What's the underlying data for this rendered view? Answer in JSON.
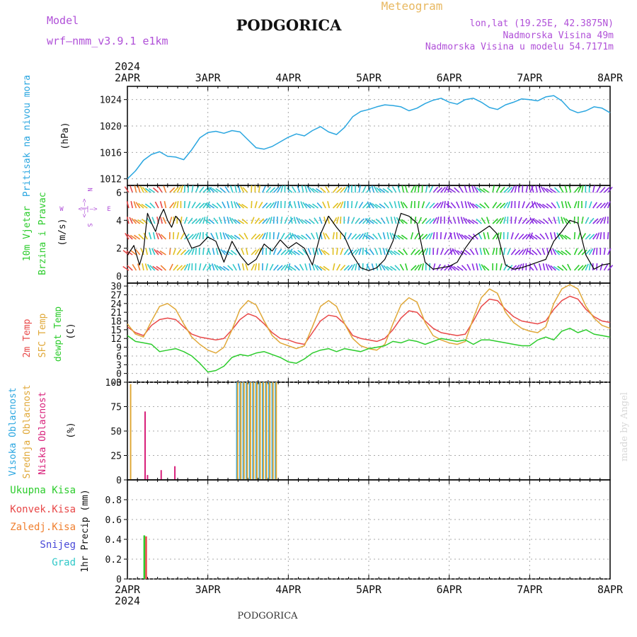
{
  "header": {
    "model_label": "Model",
    "model_name": "wrf—nmm_v3.9.1  e1km",
    "station": "PODGORICA",
    "meteogram_label": "Meteogram",
    "lonlat": "lon,lat (19.25E, 42.3875N)",
    "elevation": "Nadmorska Visina 49m",
    "model_elevation": "Nadmorska Visina u modelu 54.7171m",
    "credit": "made by Angel",
    "footer_station": "PODGORICA",
    "year": "2024"
  },
  "colors": {
    "pressure": "#2aa6e0",
    "temp2m": "#e84848",
    "sfc": "#e0a838",
    "dewpt": "#2ccc2c",
    "high_cloud": "#2aa6e0",
    "mid_cloud": "#e0a838",
    "low_cloud": "#d8207a",
    "total_precip": "#2ccc2c",
    "convective": "#e84848",
    "frozen": "#f08030",
    "snow": "#4848d8",
    "graupel": "#30c8c8",
    "wind_speed": "#000000",
    "header_purple": "#b050d8",
    "header_gold": "#e8b860"
  },
  "chart_data": [
    {
      "id": "pressure",
      "type": "line",
      "ylabel_left": "Pritisak na nivou mora",
      "ylabel_unit": "(hPa)",
      "x_ticks": [
        "2APR",
        "3APR",
        "4APR",
        "5APR",
        "6APR",
        "7APR",
        "8APR"
      ],
      "ylim": [
        1011,
        1026
      ],
      "yticks": [
        1012,
        1016,
        1020,
        1024
      ],
      "series": [
        {
          "x": [
            0,
            0.1,
            0.2,
            0.3,
            0.4,
            0.5,
            0.6,
            0.7,
            0.8,
            0.9,
            1.0,
            1.1,
            1.2,
            1.3,
            1.4,
            1.5,
            1.6,
            1.7,
            1.8,
            1.9,
            2.0,
            2.1,
            2.2,
            2.3,
            2.4,
            2.5,
            2.6,
            2.7,
            2.8,
            2.9,
            3.0,
            3.1,
            3.2,
            3.3,
            3.4,
            3.5,
            3.6,
            3.7,
            3.8,
            3.9,
            4.0,
            4.1,
            4.2,
            4.3,
            4.4,
            4.5,
            4.6,
            4.7,
            4.8,
            4.9,
            5.0,
            5.1,
            5.2,
            5.3,
            5.4,
            5.5,
            5.6,
            5.7,
            5.8,
            5.9,
            6.0
          ],
          "y": [
            1012.0,
            1013.2,
            1014.8,
            1015.7,
            1016.1,
            1015.4,
            1015.3,
            1014.9,
            1016.4,
            1018.2,
            1019.0,
            1019.2,
            1018.9,
            1019.3,
            1019.1,
            1017.9,
            1016.7,
            1016.5,
            1016.9,
            1017.6,
            1018.3,
            1018.8,
            1018.5,
            1019.3,
            1019.9,
            1019.1,
            1018.7,
            1019.8,
            1021.4,
            1022.2,
            1022.5,
            1022.9,
            1023.2,
            1023.1,
            1022.9,
            1022.3,
            1022.7,
            1023.4,
            1023.9,
            1024.2,
            1023.6,
            1023.3,
            1024.0,
            1024.2,
            1023.6,
            1022.8,
            1022.5,
            1023.2,
            1023.6,
            1024.1,
            1024.0,
            1023.8,
            1024.4,
            1024.6,
            1023.8,
            1022.5,
            1022.0,
            1022.3,
            1022.9,
            1022.7,
            1022.0
          ]
        }
      ]
    },
    {
      "id": "wind",
      "type": "line",
      "ylabel_left": "10m Vjetar",
      "ylabel_left2": "Brzina i Pravac",
      "ylabel_unit": "(m/s)",
      "compass_n": "N",
      "compass_s": "S",
      "compass_w": "W",
      "compass_e": "E",
      "compass_arrows_v": "<—|—>",
      "compass_arrows_h": "<—|—>",
      "ylim": [
        -0.5,
        6.5
      ],
      "yticks": [
        0,
        2,
        4,
        6
      ],
      "series": [
        {
          "name": "speed",
          "x": [
            0,
            0.08,
            0.15,
            0.2,
            0.25,
            0.3,
            0.35,
            0.4,
            0.45,
            0.5,
            0.55,
            0.6,
            0.65,
            0.7,
            0.8,
            0.9,
            1.0,
            1.1,
            1.2,
            1.3,
            1.4,
            1.5,
            1.6,
            1.7,
            1.8,
            1.9,
            2.0,
            2.1,
            2.2,
            2.3,
            2.4,
            2.5,
            2.6,
            2.7,
            2.8,
            2.9,
            3.0,
            3.1,
            3.2,
            3.3,
            3.4,
            3.5,
            3.6,
            3.7,
            3.8,
            3.9,
            4.0,
            4.1,
            4.2,
            4.3,
            4.4,
            4.5,
            4.6,
            4.7,
            4.8,
            4.9,
            5.0,
            5.1,
            5.2,
            5.3,
            5.4,
            5.5,
            5.6,
            5.7,
            5.8,
            5.9,
            6.0
          ],
          "y": [
            1.5,
            2.2,
            0.8,
            1.8,
            4.5,
            3.8,
            3.2,
            4.2,
            4.8,
            4.0,
            3.5,
            4.3,
            4.0,
            3.2,
            2.0,
            2.2,
            2.8,
            2.5,
            1.0,
            2.5,
            1.5,
            0.8,
            1.2,
            2.3,
            1.8,
            2.6,
            2.0,
            2.4,
            2.0,
            0.8,
            3.0,
            4.3,
            3.5,
            2.8,
            1.5,
            0.6,
            0.4,
            0.6,
            1.2,
            2.5,
            4.5,
            4.3,
            3.8,
            1.0,
            0.5,
            0.6,
            0.7,
            1.0,
            2.0,
            2.8,
            3.2,
            3.6,
            3.0,
            0.8,
            0.5,
            0.6,
            0.8,
            1.0,
            1.2,
            2.5,
            3.2,
            4.0,
            3.8,
            1.5,
            0.5,
            0.8,
            0.9
          ]
        }
      ]
    },
    {
      "id": "temperature",
      "type": "line",
      "ylabel_left": "2m Temp",
      "ylabel_left2": "SFC Temp",
      "ylabel_left3": "dewpt Temp",
      "ylabel_unit": "(C)",
      "ylim": [
        -3,
        31
      ],
      "yticks": [
        -3,
        0,
        3,
        6,
        9,
        12,
        15,
        18,
        21,
        24,
        27,
        30
      ],
      "series": [
        {
          "name": "2m Temp",
          "x": [
            0,
            0.1,
            0.2,
            0.3,
            0.4,
            0.5,
            0.6,
            0.7,
            0.8,
            0.9,
            1.0,
            1.1,
            1.2,
            1.3,
            1.4,
            1.5,
            1.6,
            1.7,
            1.8,
            1.9,
            2.0,
            2.1,
            2.2,
            2.3,
            2.4,
            2.5,
            2.6,
            2.7,
            2.8,
            2.9,
            3.0,
            3.1,
            3.2,
            3.3,
            3.4,
            3.5,
            3.6,
            3.7,
            3.8,
            3.9,
            4.0,
            4.1,
            4.2,
            4.3,
            4.4,
            4.5,
            4.6,
            4.7,
            4.8,
            4.9,
            5.0,
            5.1,
            5.2,
            5.3,
            5.4,
            5.5,
            5.6,
            5.7,
            5.8,
            5.9,
            6.0
          ],
          "y": [
            16.0,
            14.0,
            13.0,
            16.5,
            18.5,
            19.0,
            18.5,
            16.0,
            13.5,
            12.5,
            12.0,
            11.5,
            12.0,
            15.0,
            18.5,
            20.5,
            19.5,
            17.0,
            14.0,
            12.0,
            11.5,
            10.5,
            10.0,
            14.0,
            18.0,
            20.0,
            19.5,
            17.0,
            13.0,
            12.0,
            11.5,
            11.0,
            12.0,
            15.0,
            19.0,
            21.5,
            21.0,
            18.0,
            15.5,
            14.0,
            13.5,
            13.0,
            13.5,
            18.0,
            23.0,
            25.5,
            25.0,
            22.0,
            19.5,
            18.0,
            17.5,
            17.0,
            18.0,
            22.0,
            25.0,
            26.5,
            25.5,
            22.0,
            19.5,
            18.0,
            17.5
          ]
        },
        {
          "name": "SFC Temp",
          "x": [
            0,
            0.1,
            0.2,
            0.3,
            0.4,
            0.5,
            0.6,
            0.7,
            0.8,
            0.9,
            1.0,
            1.1,
            1.2,
            1.3,
            1.4,
            1.5,
            1.6,
            1.7,
            1.8,
            1.9,
            2.0,
            2.1,
            2.2,
            2.3,
            2.4,
            2.5,
            2.6,
            2.7,
            2.8,
            2.9,
            3.0,
            3.1,
            3.2,
            3.3,
            3.4,
            3.5,
            3.6,
            3.7,
            3.8,
            3.9,
            4.0,
            4.1,
            4.2,
            4.3,
            4.4,
            4.5,
            4.6,
            4.7,
            4.8,
            4.9,
            5.0,
            5.1,
            5.2,
            5.3,
            5.4,
            5.5,
            5.6,
            5.7,
            5.8,
            5.9,
            6.0
          ],
          "y": [
            17.0,
            13.5,
            12.5,
            18.0,
            23.0,
            24.0,
            22.0,
            17.0,
            12.5,
            10.0,
            8.0,
            7.0,
            9.0,
            15.0,
            22.0,
            25.0,
            23.5,
            18.0,
            13.0,
            10.5,
            9.5,
            8.5,
            9.5,
            16.0,
            23.0,
            25.0,
            23.0,
            17.0,
            12.0,
            9.5,
            8.5,
            8.0,
            10.0,
            17.0,
            23.5,
            26.0,
            24.5,
            17.5,
            13.0,
            11.5,
            10.5,
            10.0,
            11.0,
            19.0,
            26.0,
            29.0,
            27.5,
            21.0,
            17.5,
            15.5,
            14.5,
            14.0,
            16.0,
            24.0,
            29.0,
            30.5,
            29.0,
            23.0,
            19.0,
            16.5,
            15.5
          ]
        },
        {
          "name": "dewpt Temp",
          "x": [
            0,
            0.1,
            0.2,
            0.3,
            0.4,
            0.5,
            0.6,
            0.7,
            0.8,
            0.9,
            1.0,
            1.1,
            1.2,
            1.3,
            1.4,
            1.5,
            1.6,
            1.7,
            1.8,
            1.9,
            2.0,
            2.1,
            2.2,
            2.3,
            2.4,
            2.5,
            2.6,
            2.7,
            2.8,
            2.9,
            3.0,
            3.1,
            3.2,
            3.3,
            3.4,
            3.5,
            3.6,
            3.7,
            3.8,
            3.9,
            4.0,
            4.1,
            4.2,
            4.3,
            4.4,
            4.5,
            4.6,
            4.7,
            4.8,
            4.9,
            5.0,
            5.1,
            5.2,
            5.3,
            5.4,
            5.5,
            5.6,
            5.7,
            5.8,
            5.9,
            6.0
          ],
          "y": [
            13.0,
            11.0,
            10.5,
            10.0,
            7.5,
            8.0,
            8.5,
            7.5,
            6.0,
            3.5,
            0.5,
            1.0,
            2.5,
            5.5,
            6.5,
            6.0,
            7.0,
            7.5,
            6.5,
            5.5,
            4.0,
            3.5,
            5.0,
            7.0,
            8.0,
            8.5,
            7.5,
            8.5,
            8.0,
            7.5,
            8.5,
            9.0,
            9.5,
            11.0,
            10.5,
            11.5,
            11.0,
            10.0,
            11.0,
            12.0,
            11.5,
            11.0,
            11.5,
            10.0,
            11.5,
            11.5,
            11.0,
            10.5,
            10.0,
            9.5,
            9.5,
            11.5,
            12.5,
            11.5,
            14.5,
            15.5,
            14.0,
            15.0,
            13.5,
            13.0,
            12.5
          ]
        }
      ]
    },
    {
      "id": "cloud",
      "type": "bar",
      "ylabel_left": "Visoka Oblacnost",
      "ylabel_left2": "Srednja Oblacnost",
      "ylabel_left3": "Niska Oblacnost",
      "ylabel_unit": "(%)",
      "ylim": [
        0,
        100
      ],
      "yticks": [
        0,
        25,
        50,
        75,
        100
      ],
      "series": [
        {
          "name": "Visoka Oblacnost",
          "x": [
            1.36,
            1.4,
            1.44,
            1.48,
            1.52,
            1.56,
            1.6,
            1.64,
            1.68,
            1.72,
            1.76,
            1.8,
            1.84
          ],
          "values": [
            100,
            100,
            100,
            100,
            100,
            100,
            100,
            100,
            100,
            100,
            100,
            100,
            100
          ]
        },
        {
          "name": "Srednja Oblacnost",
          "x": [
            0.04,
            1.37,
            1.41,
            1.45,
            1.49,
            1.53,
            1.57,
            1.61,
            1.65,
            1.69,
            1.73,
            1.77,
            1.81,
            1.85
          ],
          "values": [
            98,
            100,
            100,
            100,
            100,
            100,
            100,
            100,
            100,
            100,
            100,
            100,
            100,
            100
          ]
        },
        {
          "name": "Niska Oblacnost",
          "x": [
            0.22,
            0.25,
            0.42,
            0.59
          ],
          "values": [
            70,
            5,
            10,
            14
          ]
        }
      ]
    },
    {
      "id": "precip",
      "type": "bar",
      "ylabel_left": "1hr Precip (mm)",
      "legend": [
        "Ukupna Kisa",
        "Konvek.Kisa",
        "Zaledj.Kisa",
        "Snijeg",
        "Grad"
      ],
      "ylim": [
        0,
        1.0
      ],
      "yticks": [
        0,
        0.2,
        0.4,
        0.6,
        0.8
      ],
      "series": [
        {
          "name": "Ukupna Kisa",
          "x": [
            0.21
          ],
          "values": [
            0.44
          ]
        },
        {
          "name": "Konvek.Kisa",
          "x": [
            0.215
          ],
          "values": [
            0.43
          ]
        }
      ]
    }
  ]
}
